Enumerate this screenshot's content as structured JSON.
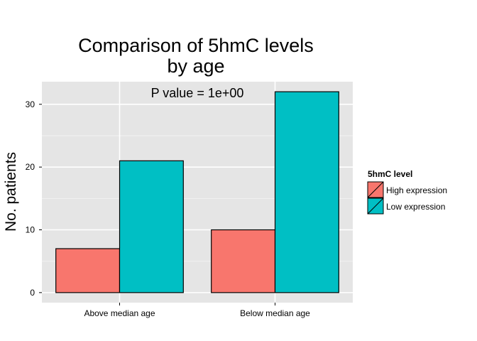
{
  "chart_data": {
    "type": "bar",
    "title_lines": [
      "Comparison of 5hmC levels",
      "by age"
    ],
    "annotation": "P value = 1e+00",
    "ylabel": "No. patients",
    "xlabel": "",
    "categories": [
      "Above median age",
      "Below median age"
    ],
    "series": [
      {
        "name": "High expression",
        "values": [
          7,
          10
        ],
        "color": "#F8766D"
      },
      {
        "name": "Low expression",
        "values": [
          21,
          32
        ],
        "color": "#00BFC4"
      }
    ],
    "ylim": [
      -1.6,
      33.6
    ],
    "yticks": [
      0,
      10,
      20,
      30
    ],
    "grid": true,
    "panel_background": "#E5E5E5",
    "legend": {
      "title": "5hmC level",
      "position": "right"
    }
  }
}
